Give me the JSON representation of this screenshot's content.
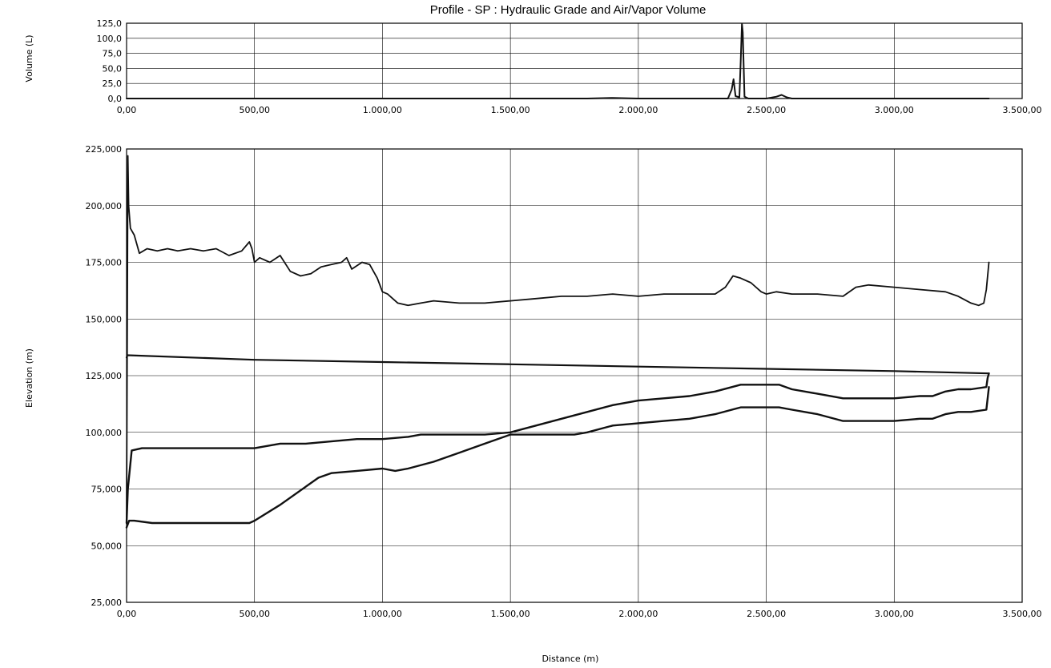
{
  "chart_data": [
    {
      "type": "line",
      "title": "Profile - SP : Hydraulic Grade and Air/Vapor Volume",
      "xlabel": "",
      "ylabel": "Volume (L)",
      "xlim": [
        0,
        3500
      ],
      "ylim": [
        0,
        125
      ],
      "x_ticks": [
        "0,00",
        "500,00",
        "1.000,00",
        "1.500,00",
        "2.000,00",
        "2.500,00",
        "3.000,00",
        "3.500,00"
      ],
      "y_ticks": [
        "0,0",
        "25,0",
        "50,0",
        "75,0",
        "100,0",
        "125,0"
      ],
      "grid": true,
      "series": [
        {
          "x": [
            0,
            500,
            1000,
            1500,
            1800,
            1900,
            2000,
            2350,
            2365,
            2372,
            2380,
            2395,
            2400,
            2405,
            2408,
            2415,
            2430,
            2500,
            2540,
            2560,
            2580,
            2600,
            3000,
            3370
          ],
          "y": [
            0,
            0,
            0,
            0,
            0,
            1,
            0,
            0,
            15,
            32,
            4,
            2,
            60,
            124,
            110,
            3,
            0,
            0,
            3,
            6,
            2,
            0,
            0,
            0
          ]
        }
      ]
    },
    {
      "type": "line",
      "title": "",
      "xlabel": "Distance (m)",
      "ylabel": "Elevation (m)",
      "xlim": [
        0,
        3500
      ],
      "ylim": [
        25,
        225
      ],
      "x_ticks": [
        "0,00",
        "500,00",
        "1.000,00",
        "1.500,00",
        "2.000,00",
        "2.500,00",
        "3.000,00",
        "3.500,00"
      ],
      "y_ticks": [
        "25,000",
        "50,000",
        "75,000",
        "100,000",
        "125,000",
        "150,000",
        "175,000",
        "200,000",
        "225,000"
      ],
      "grid": true,
      "series": [
        {
          "x": [
            0,
            5,
            8,
            15,
            30,
            50,
            80,
            120,
            160,
            200,
            250,
            300,
            350,
            400,
            450,
            480,
            490,
            500,
            520,
            560,
            600,
            640,
            680,
            720,
            760,
            800,
            840,
            860,
            880,
            920,
            950,
            980,
            1000,
            1020,
            1060,
            1100,
            1150,
            1200,
            1300,
            1400,
            1500,
            1600,
            1700,
            1800,
            1900,
            2000,
            2100,
            2200,
            2300,
            2340,
            2370,
            2400,
            2440,
            2480,
            2500,
            2540,
            2600,
            2700,
            2800,
            2850,
            2900,
            3000,
            3100,
            3200,
            3250,
            3300,
            3330,
            3350,
            3360,
            3370
          ],
          "y": [
            60,
            222,
            200,
            190,
            187,
            179,
            181,
            180,
            181,
            180,
            181,
            180,
            181,
            178,
            180,
            184,
            181,
            175,
            177,
            175,
            178,
            171,
            169,
            170,
            173,
            174,
            175,
            177,
            172,
            175,
            174,
            168,
            162,
            161,
            157,
            156,
            157,
            158,
            157,
            157,
            158,
            159,
            160,
            160,
            161,
            160,
            161,
            161,
            161,
            164,
            169,
            168,
            166,
            162,
            161,
            162,
            161,
            161,
            160,
            164,
            165,
            164,
            163,
            162,
            160,
            157,
            156,
            157,
            163,
            175
          ]
        },
        {
          "x": [
            0,
            3,
            500,
            1000,
            1500,
            2000,
            2500,
            3000,
            3370
          ],
          "y": [
            133,
            134,
            132,
            131,
            130,
            129,
            128,
            127,
            126
          ]
        },
        {
          "x": [
            0,
            5,
            20,
            60,
            100,
            200,
            300,
            400,
            500,
            600,
            700,
            800,
            900,
            1000,
            1100,
            1150,
            1200,
            1400,
            1500,
            1600,
            1700,
            1800,
            1900,
            2000,
            2100,
            2200,
            2300,
            2400,
            2500,
            2550,
            2600,
            2700,
            2800,
            2900,
            3000,
            3100,
            3150,
            3200,
            3250,
            3300,
            3360,
            3365,
            3370
          ],
          "y": [
            60,
            75,
            92,
            93,
            93,
            93,
            93,
            93,
            93,
            95,
            95,
            96,
            97,
            97,
            98,
            99,
            99,
            99,
            100,
            103,
            106,
            109,
            112,
            114,
            115,
            116,
            118,
            121,
            121,
            121,
            119,
            117,
            115,
            115,
            115,
            116,
            116,
            118,
            119,
            119,
            120,
            124,
            126
          ]
        },
        {
          "x": [
            0,
            10,
            30,
            100,
            200,
            300,
            400,
            480,
            500,
            600,
            700,
            750,
            800,
            900,
            1000,
            1050,
            1100,
            1200,
            1300,
            1400,
            1500,
            1600,
            1700,
            1750,
            1800,
            1900,
            2000,
            2100,
            2200,
            2300,
            2400,
            2500,
            2550,
            2600,
            2700,
            2800,
            2900,
            3000,
            3100,
            3150,
            3200,
            3250,
            3300,
            3360,
            3370
          ],
          "y": [
            58,
            61,
            61,
            60,
            60,
            60,
            60,
            60,
            61,
            68,
            76,
            80,
            82,
            83,
            84,
            83,
            84,
            87,
            91,
            95,
            99,
            99,
            99,
            99,
            100,
            103,
            104,
            105,
            106,
            108,
            111,
            111,
            111,
            110,
            108,
            105,
            105,
            105,
            106,
            106,
            108,
            109,
            109,
            110,
            120
          ]
        }
      ]
    }
  ]
}
